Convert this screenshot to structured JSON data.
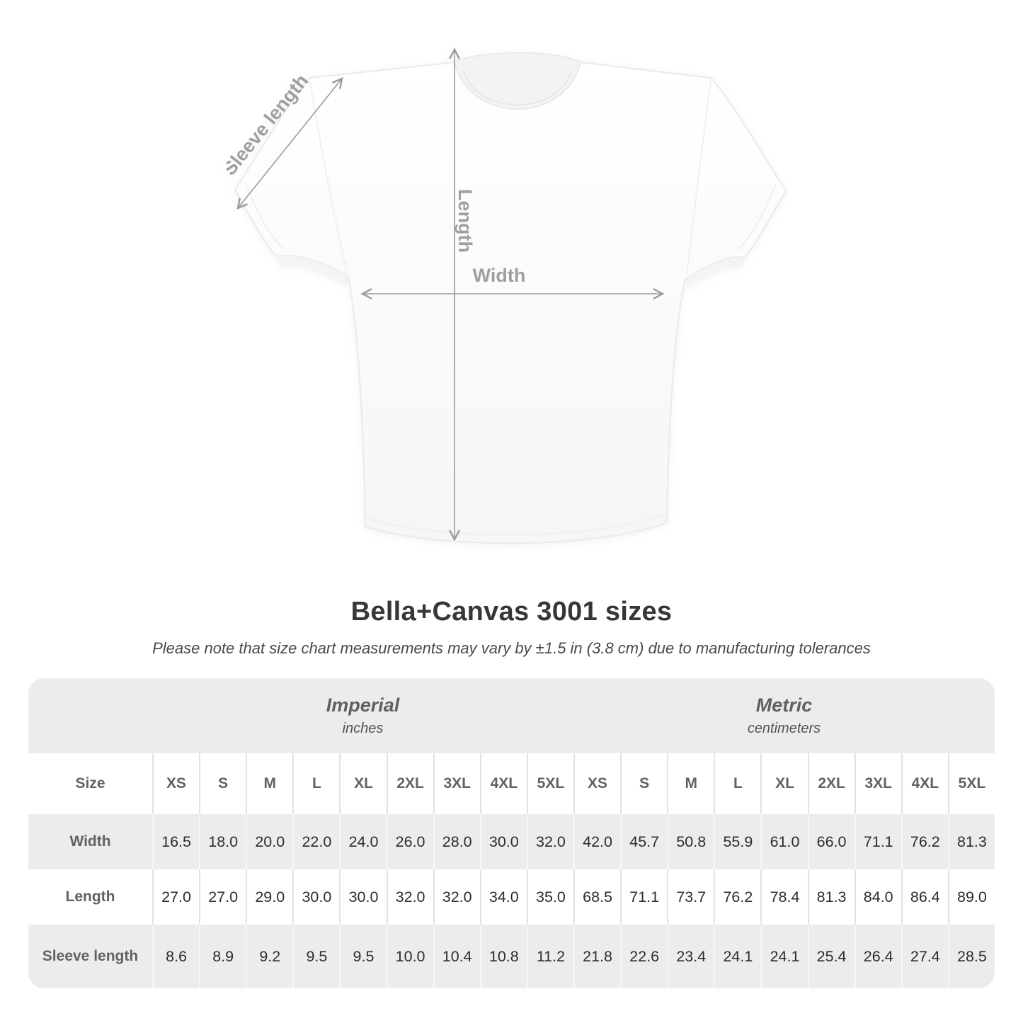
{
  "diagram": {
    "sleeve_label": "Sleeve length",
    "length_label": "Length",
    "width_label": "Width",
    "arrow_color": "#9b9b9b",
    "label_color": "#9ca0a3"
  },
  "title": "Bella+Canvas 3001 sizes",
  "note": "Please note that size chart measurements may vary by ±1.5 in (3.8 cm) due to manufacturing tolerances",
  "table": {
    "size_header": "Size",
    "groups": [
      {
        "label": "Imperial",
        "sublabel": "inches"
      },
      {
        "label": "Metric",
        "sublabel": "centimeters"
      }
    ],
    "sizes": [
      "XS",
      "S",
      "M",
      "L",
      "XL",
      "2XL",
      "3XL",
      "4XL",
      "5XL"
    ],
    "rows": [
      {
        "label": "Width",
        "values": [
          "16.5",
          "18.0",
          "20.0",
          "22.0",
          "24.0",
          "26.0",
          "28.0",
          "30.0",
          "32.0",
          "42.0",
          "45.7",
          "50.8",
          "55.9",
          "61.0",
          "66.0",
          "71.1",
          "76.2",
          "81.3"
        ]
      },
      {
        "label": "Length",
        "values": [
          "27.0",
          "27.0",
          "29.0",
          "30.0",
          "30.0",
          "32.0",
          "32.0",
          "34.0",
          "35.0",
          "68.5",
          "71.1",
          "73.7",
          "76.2",
          "78.4",
          "81.3",
          "84.0",
          "86.4",
          "89.0"
        ]
      },
      {
        "label": "Sleeve length",
        "values": [
          "8.6",
          "8.9",
          "9.2",
          "9.5",
          "9.5",
          "10.0",
          "10.4",
          "10.8",
          "11.2",
          "21.8",
          "22.6",
          "23.4",
          "24.1",
          "24.1",
          "25.4",
          "26.4",
          "27.4",
          "28.5"
        ]
      }
    ]
  },
  "chart_data": {
    "type": "table",
    "title": "Bella+Canvas 3001 sizes",
    "units": {
      "imperial": "inches",
      "metric": "centimeters"
    },
    "sizes": [
      "XS",
      "S",
      "M",
      "L",
      "XL",
      "2XL",
      "3XL",
      "4XL",
      "5XL"
    ],
    "measurements": [
      {
        "name": "Width",
        "imperial_inches": [
          16.5,
          18.0,
          20.0,
          22.0,
          24.0,
          26.0,
          28.0,
          30.0,
          32.0
        ],
        "metric_centimeters": [
          42.0,
          45.7,
          50.8,
          55.9,
          61.0,
          66.0,
          71.1,
          76.2,
          81.3
        ]
      },
      {
        "name": "Length",
        "imperial_inches": [
          27.0,
          27.0,
          29.0,
          30.0,
          30.0,
          32.0,
          32.0,
          34.0,
          35.0
        ],
        "metric_centimeters": [
          68.5,
          71.1,
          73.7,
          76.2,
          78.4,
          81.3,
          84.0,
          86.4,
          89.0
        ]
      },
      {
        "name": "Sleeve length",
        "imperial_inches": [
          8.6,
          8.9,
          9.2,
          9.5,
          9.5,
          10.0,
          10.4,
          10.8,
          11.2
        ],
        "metric_centimeters": [
          21.8,
          22.6,
          23.4,
          24.1,
          24.1,
          25.4,
          26.4,
          27.4,
          28.5
        ]
      }
    ],
    "tolerance_note": "±1.5 in (3.8 cm)"
  }
}
